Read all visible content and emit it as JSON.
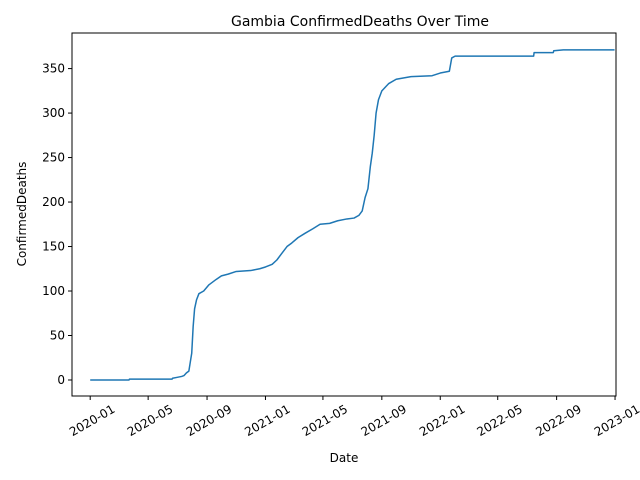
{
  "chart_data": {
    "type": "line",
    "title": "Gambia  ConfirmedDeaths Over Time",
    "xlabel": "Date",
    "ylabel": "ConfirmedDeaths",
    "x_axis": "date",
    "xlim": [
      "2019-11-24",
      "2023-01-03"
    ],
    "ylim": [
      -18,
      390
    ],
    "grid": false,
    "x_ticks": [
      "2020-01-01",
      "2020-05-01",
      "2020-09-01",
      "2021-01-01",
      "2021-05-01",
      "2021-09-01",
      "2022-01-01",
      "2022-05-01",
      "2022-09-01",
      "2023-01-01"
    ],
    "x_tick_labels": [
      "2020-01",
      "2020-05",
      "2020-09",
      "2021-01",
      "2021-05",
      "2021-09",
      "2022-01",
      "2022-05",
      "2022-09",
      "2023-01"
    ],
    "y_ticks": [
      0,
      50,
      100,
      150,
      200,
      250,
      300,
      350
    ],
    "series": [
      {
        "color": "#1f77b4",
        "points": [
          [
            "2020-01-01",
            0
          ],
          [
            "2020-03-22",
            0
          ],
          [
            "2020-03-23",
            1
          ],
          [
            "2020-06-20",
            1
          ],
          [
            "2020-06-21",
            2
          ],
          [
            "2020-07-01",
            3
          ],
          [
            "2020-07-10",
            4
          ],
          [
            "2020-07-15",
            5
          ],
          [
            "2020-07-20",
            8
          ],
          [
            "2020-07-25",
            10
          ],
          [
            "2020-07-28",
            20
          ],
          [
            "2020-07-31",
            30
          ],
          [
            "2020-08-03",
            60
          ],
          [
            "2020-08-06",
            80
          ],
          [
            "2020-08-10",
            90
          ],
          [
            "2020-08-15",
            97
          ],
          [
            "2020-08-25",
            100
          ],
          [
            "2020-09-05",
            107
          ],
          [
            "2020-09-20",
            113
          ],
          [
            "2020-10-01",
            117
          ],
          [
            "2020-10-15",
            119
          ],
          [
            "2020-11-01",
            122
          ],
          [
            "2020-12-01",
            123
          ],
          [
            "2020-12-20",
            125
          ],
          [
            "2021-01-01",
            127
          ],
          [
            "2021-01-15",
            130
          ],
          [
            "2021-01-25",
            135
          ],
          [
            "2021-02-05",
            143
          ],
          [
            "2021-02-15",
            150
          ],
          [
            "2021-02-25",
            154
          ],
          [
            "2021-03-10",
            160
          ],
          [
            "2021-03-25",
            165
          ],
          [
            "2021-04-10",
            170
          ],
          [
            "2021-04-25",
            175
          ],
          [
            "2021-05-15",
            176
          ],
          [
            "2021-06-01",
            179
          ],
          [
            "2021-06-20",
            181
          ],
          [
            "2021-07-05",
            182
          ],
          [
            "2021-07-15",
            185
          ],
          [
            "2021-07-22",
            190
          ],
          [
            "2021-07-28",
            205
          ],
          [
            "2021-08-03",
            215
          ],
          [
            "2021-08-08",
            240
          ],
          [
            "2021-08-12",
            255
          ],
          [
            "2021-08-16",
            275
          ],
          [
            "2021-08-20",
            300
          ],
          [
            "2021-08-25",
            315
          ],
          [
            "2021-09-01",
            325
          ],
          [
            "2021-09-15",
            333
          ],
          [
            "2021-10-01",
            338
          ],
          [
            "2021-11-01",
            341
          ],
          [
            "2021-12-15",
            342
          ],
          [
            "2022-01-01",
            345
          ],
          [
            "2022-01-20",
            347
          ],
          [
            "2022-01-25",
            362
          ],
          [
            "2022-02-01",
            364
          ],
          [
            "2022-07-15",
            364
          ],
          [
            "2022-07-16",
            368
          ],
          [
            "2022-08-25",
            368
          ],
          [
            "2022-08-26",
            370
          ],
          [
            "2022-09-15",
            371
          ],
          [
            "2022-12-31",
            371
          ]
        ]
      }
    ]
  }
}
